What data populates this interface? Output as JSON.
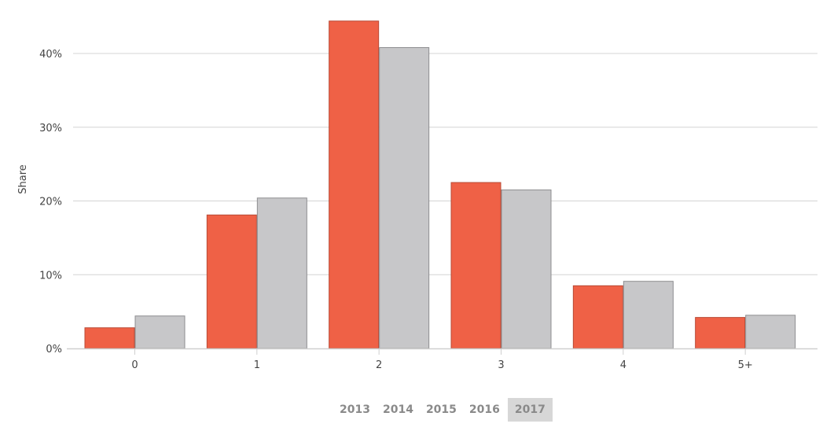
{
  "chart_data": {
    "type": "bar",
    "categories": [
      "0",
      "1",
      "2",
      "3",
      "4",
      "5+"
    ],
    "series": [
      {
        "values": [
          2.8,
          18.1,
          44.4,
          22.5,
          8.5,
          4.2
        ],
        "color": "#ef6146"
      },
      {
        "values": [
          4.4,
          20.4,
          40.8,
          21.5,
          9.1,
          4.5
        ],
        "color": "#c7c7c9"
      }
    ],
    "ylabel": "Share",
    "ylim": [
      0,
      47
    ],
    "yticks": [
      0,
      10,
      20,
      30,
      40
    ],
    "ytick_labels": [
      "0%",
      "10%",
      "20%",
      "30%",
      "40%"
    ],
    "grid": true,
    "legend": "none"
  },
  "year_selector": {
    "years": [
      "2013",
      "2014",
      "2015",
      "2016",
      "2017"
    ],
    "selected": "2017"
  }
}
